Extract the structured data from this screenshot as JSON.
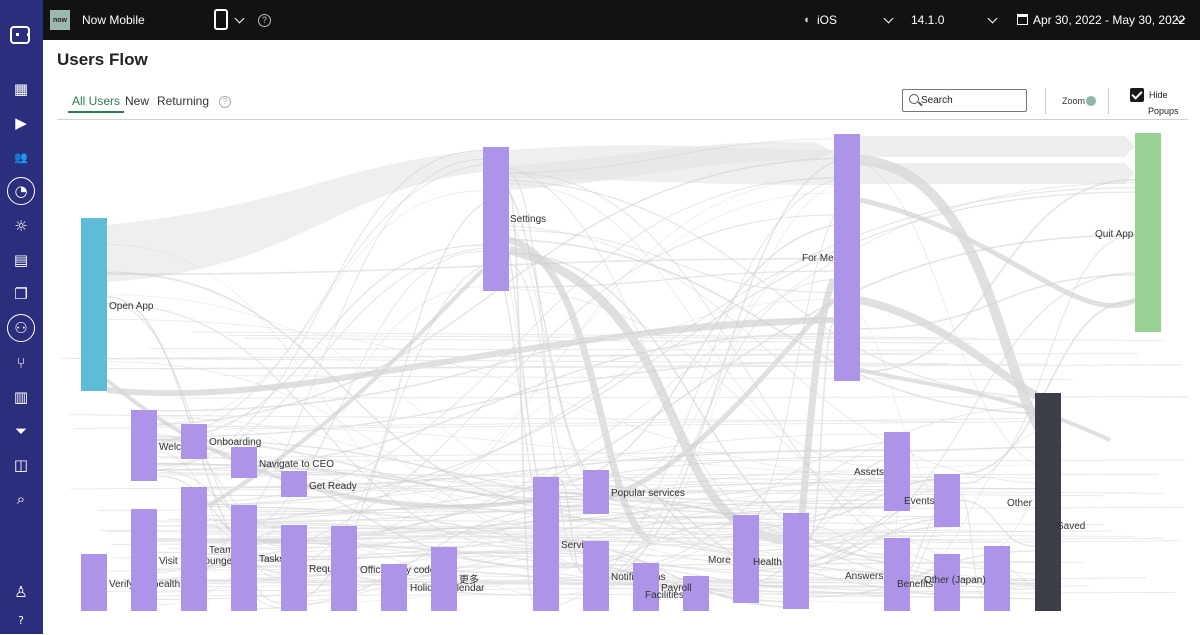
{
  "sidebar": {
    "items": [
      {
        "name": "dashboard-icon",
        "glyph": "▦"
      },
      {
        "name": "play-icon",
        "glyph": "▶"
      },
      {
        "name": "users-icon",
        "glyph": "👥"
      },
      {
        "name": "analytics-icon",
        "glyph": "◔"
      },
      {
        "name": "lightbulb-icon",
        "glyph": "☼"
      },
      {
        "name": "news-icon",
        "glyph": "▤"
      },
      {
        "name": "copy-icon",
        "glyph": "❐"
      },
      {
        "name": "flow-icon",
        "glyph": "⚇"
      },
      {
        "name": "branch-icon",
        "glyph": "⑂"
      },
      {
        "name": "bar-chart-icon",
        "glyph": "▥"
      },
      {
        "name": "funnel-icon",
        "glyph": "⏷"
      },
      {
        "name": "widgets-icon",
        "glyph": "◫"
      },
      {
        "name": "search-analytics-icon",
        "glyph": "⌕"
      },
      {
        "name": "profile-icon",
        "glyph": "♙"
      },
      {
        "name": "help-icon",
        "glyph": "?"
      }
    ]
  },
  "topbar": {
    "app_logo": "now",
    "app_name": "Now Mobile",
    "help": "?",
    "platform": "iOS",
    "version": "14.1.0",
    "date_range": "Apr 30, 2022 - May 30, 2022"
  },
  "page": {
    "title": "Users Flow",
    "help": "?",
    "tabs": [
      {
        "label": "All Users",
        "active": true
      },
      {
        "label": "New",
        "active": false
      },
      {
        "label": "Returning",
        "active": false
      }
    ],
    "search_placeholder": "Search",
    "zoom_label": "Zoom",
    "hide_popups_line1": "Hide",
    "hide_popups_line2": "Popups",
    "hide_popups_checked": true
  },
  "colors": {
    "start_node": "#5ebcd6",
    "screen_node": "#ad94e8",
    "quit_node": "#98d295",
    "saved_node": "#3d3f48",
    "link": "#cfcfcf"
  },
  "flow": {
    "nodes": [
      {
        "id": "open",
        "label": "Open App",
        "kind": "start"
      },
      {
        "id": "welcome",
        "label": "Welcome",
        "kind": "screen"
      },
      {
        "id": "onboard",
        "label": "Onboarding",
        "kind": "screen"
      },
      {
        "id": "ceo",
        "label": "Navigate to CEO",
        "kind": "screen"
      },
      {
        "id": "ready",
        "label": "Get Ready",
        "kind": "screen"
      },
      {
        "id": "verify",
        "label": "Verify my health",
        "kind": "screen"
      },
      {
        "id": "visit",
        "label": "Visit tech lounge",
        "kind": "screen"
      },
      {
        "id": "team",
        "label": "Team",
        "kind": "screen"
      },
      {
        "id": "tasks",
        "label": "Tasks",
        "kind": "screen"
      },
      {
        "id": "requests",
        "label": "Requests",
        "kind": "screen"
      },
      {
        "id": "office",
        "label": "Office entry code",
        "kind": "screen"
      },
      {
        "id": "holiday",
        "label": "Holiday calendar",
        "kind": "screen"
      },
      {
        "id": "more_cn",
        "label": "更多",
        "kind": "screen"
      },
      {
        "id": "settings",
        "label": "Settings",
        "kind": "screen"
      },
      {
        "id": "services",
        "label": "Services",
        "kind": "screen"
      },
      {
        "id": "popular",
        "label": "Popular services",
        "kind": "screen"
      },
      {
        "id": "notif",
        "label": "Notifications",
        "kind": "screen"
      },
      {
        "id": "facil",
        "label": "Facilities",
        "kind": "screen"
      },
      {
        "id": "payroll",
        "label": "Payroll",
        "kind": "screen"
      },
      {
        "id": "more",
        "label": "More",
        "kind": "screen"
      },
      {
        "id": "health",
        "label": "Health",
        "kind": "screen"
      },
      {
        "id": "forme",
        "label": "For Me",
        "kind": "screen"
      },
      {
        "id": "assets",
        "label": "Assets",
        "kind": "screen"
      },
      {
        "id": "answers",
        "label": "Answers",
        "kind": "screen"
      },
      {
        "id": "events",
        "label": "Events",
        "kind": "screen"
      },
      {
        "id": "benefits",
        "label": "Benefits",
        "kind": "screen"
      },
      {
        "id": "otherjp",
        "label": "Other (Japan)",
        "kind": "screen"
      },
      {
        "id": "other",
        "label": "Other",
        "kind": "screen"
      },
      {
        "id": "saved",
        "label": "Saved",
        "kind": "saved"
      },
      {
        "id": "quit",
        "label": "Quit App",
        "kind": "quit"
      }
    ]
  }
}
